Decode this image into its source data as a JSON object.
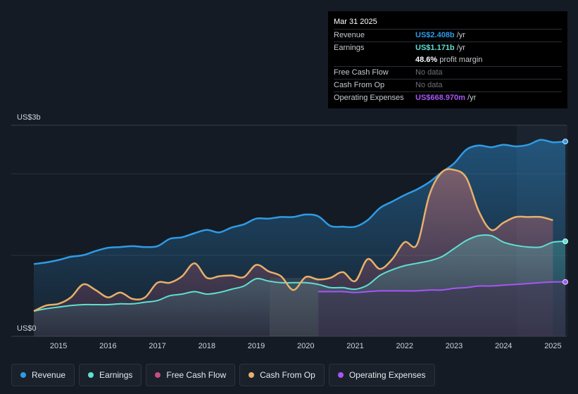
{
  "tooltip": {
    "date": "Mar 31 2025",
    "revenue_label": "Revenue",
    "revenue_value": "US$2.408b",
    "revenue_unit": "/yr",
    "earnings_label": "Earnings",
    "earnings_value": "US$1.171b",
    "earnings_unit": "/yr",
    "margin_value": "48.6%",
    "margin_label": "profit margin",
    "fcf_label": "Free Cash Flow",
    "fcf_value": "No data",
    "cfo_label": "Cash From Op",
    "cfo_value": "No data",
    "opex_label": "Operating Expenses",
    "opex_value": "US$668.970m",
    "opex_unit": "/yr"
  },
  "legend": {
    "revenue": "Revenue",
    "earnings": "Earnings",
    "fcf": "Free Cash Flow",
    "cfo": "Cash From Op",
    "opex": "Operating Expenses"
  },
  "colors": {
    "revenue": "#2f9be6",
    "earnings": "#5fe0d2",
    "fcf": "#c84d80",
    "cfo": "#e8b06a",
    "opex": "#a855f7"
  },
  "chart_data": {
    "type": "area",
    "title": "",
    "xlabel": "",
    "ylabel": "",
    "y_top_label": "US$3b",
    "y_bottom_label": "US$0",
    "ylim": [
      0,
      2.6
    ],
    "xlim": [
      2014.5,
      2025.25
    ],
    "x_ticks": [
      {
        "value": 2015,
        "label": "2015"
      },
      {
        "value": 2016,
        "label": "2016"
      },
      {
        "value": 2017,
        "label": "2017"
      },
      {
        "value": 2018,
        "label": "2018"
      },
      {
        "value": 2019,
        "label": "2019"
      },
      {
        "value": 2020,
        "label": "2020"
      },
      {
        "value": 2021,
        "label": "2021"
      },
      {
        "value": 2022,
        "label": "2022"
      },
      {
        "value": 2023,
        "label": "2023"
      },
      {
        "value": 2024,
        "label": "2024"
      },
      {
        "value": 2025,
        "label": "2025"
      }
    ],
    "gridlines": [
      1.0,
      2.0
    ],
    "series": [
      {
        "key": "revenue",
        "name": "Revenue",
        "x": [
          2014.5,
          2014.75,
          2015.0,
          2015.25,
          2015.5,
          2015.75,
          2016.0,
          2016.25,
          2016.5,
          2016.75,
          2017.0,
          2017.25,
          2017.5,
          2017.75,
          2018.0,
          2018.25,
          2018.5,
          2018.75,
          2019.0,
          2019.25,
          2019.5,
          2019.75,
          2020.0,
          2020.25,
          2020.5,
          2020.75,
          2021.0,
          2021.25,
          2021.5,
          2021.75,
          2022.0,
          2022.25,
          2022.5,
          2022.75,
          2023.0,
          2023.25,
          2023.5,
          2023.75,
          2024.0,
          2024.25,
          2024.5,
          2024.75,
          2025.0,
          2025.25
        ],
        "values": [
          0.89,
          0.91,
          0.94,
          0.98,
          1.0,
          1.05,
          1.09,
          1.1,
          1.11,
          1.1,
          1.11,
          1.2,
          1.22,
          1.27,
          1.31,
          1.28,
          1.34,
          1.38,
          1.45,
          1.45,
          1.47,
          1.47,
          1.5,
          1.48,
          1.36,
          1.35,
          1.35,
          1.43,
          1.58,
          1.66,
          1.74,
          1.81,
          1.9,
          2.02,
          2.13,
          2.3,
          2.35,
          2.33,
          2.36,
          2.34,
          2.36,
          2.42,
          2.39,
          2.4
        ]
      },
      {
        "key": "earnings",
        "name": "Earnings",
        "x": [
          2014.5,
          2014.75,
          2015.0,
          2015.25,
          2015.5,
          2015.75,
          2016.0,
          2016.25,
          2016.5,
          2016.75,
          2017.0,
          2017.25,
          2017.5,
          2017.75,
          2018.0,
          2018.25,
          2018.5,
          2018.75,
          2019.0,
          2019.25,
          2019.5,
          2019.75,
          2020.0,
          2020.25,
          2020.5,
          2020.75,
          2021.0,
          2021.25,
          2021.5,
          2021.75,
          2022.0,
          2022.25,
          2022.5,
          2022.75,
          2023.0,
          2023.25,
          2023.5,
          2023.75,
          2024.0,
          2024.25,
          2024.5,
          2024.75,
          2025.0,
          2025.25
        ],
        "values": [
          0.31,
          0.34,
          0.36,
          0.38,
          0.39,
          0.39,
          0.39,
          0.4,
          0.4,
          0.42,
          0.44,
          0.5,
          0.52,
          0.55,
          0.52,
          0.54,
          0.58,
          0.62,
          0.71,
          0.68,
          0.66,
          0.66,
          0.66,
          0.64,
          0.6,
          0.6,
          0.58,
          0.63,
          0.75,
          0.82,
          0.87,
          0.9,
          0.93,
          0.98,
          1.08,
          1.18,
          1.24,
          1.24,
          1.16,
          1.12,
          1.1,
          1.1,
          1.16,
          1.17
        ]
      },
      {
        "key": "cfo",
        "name": "Cash From Op",
        "x": [
          2014.5,
          2014.75,
          2015.0,
          2015.25,
          2015.5,
          2015.75,
          2016.0,
          2016.25,
          2016.5,
          2016.75,
          2017.0,
          2017.25,
          2017.5,
          2017.75,
          2018.0,
          2018.25,
          2018.5,
          2018.75,
          2019.0,
          2019.25,
          2019.5,
          2019.75,
          2020.0,
          2020.25,
          2020.5,
          2020.75,
          2021.0,
          2021.25,
          2021.5,
          2021.75,
          2022.0,
          2022.25,
          2022.5,
          2022.75,
          2023.0,
          2023.25,
          2023.5,
          2023.75,
          2024.0,
          2024.25,
          2024.5,
          2024.75,
          2025.0
        ],
        "values": [
          0.31,
          0.38,
          0.4,
          0.48,
          0.64,
          0.57,
          0.48,
          0.54,
          0.46,
          0.48,
          0.66,
          0.66,
          0.74,
          0.9,
          0.72,
          0.74,
          0.75,
          0.73,
          0.88,
          0.8,
          0.74,
          0.57,
          0.73,
          0.7,
          0.72,
          0.79,
          0.68,
          0.95,
          0.83,
          0.95,
          1.16,
          1.13,
          1.74,
          2.02,
          2.05,
          1.95,
          1.54,
          1.31,
          1.4,
          1.47,
          1.47,
          1.47,
          1.43
        ]
      },
      {
        "key": "opex",
        "name": "Operating Expenses",
        "x": [
          2020.25,
          2020.5,
          2020.75,
          2021.0,
          2021.25,
          2021.5,
          2021.75,
          2022.0,
          2022.25,
          2022.5,
          2022.75,
          2023.0,
          2023.25,
          2023.5,
          2023.75,
          2024.0,
          2024.25,
          2024.5,
          2024.75,
          2025.0,
          2025.25
        ],
        "values": [
          0.55,
          0.55,
          0.55,
          0.54,
          0.55,
          0.56,
          0.56,
          0.56,
          0.56,
          0.57,
          0.57,
          0.59,
          0.6,
          0.62,
          0.62,
          0.63,
          0.64,
          0.65,
          0.66,
          0.67,
          0.67
        ]
      }
    ]
  }
}
